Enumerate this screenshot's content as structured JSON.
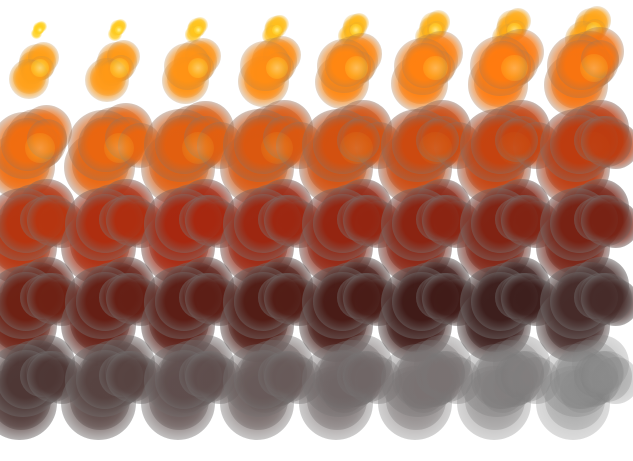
{
  "sprite_sheet": {
    "subject": "explosion",
    "columns": 8,
    "rows": 6,
    "background": "#ffffff",
    "palette": {
      "core": "#fff4a0",
      "flame_yellow": "#ffd020",
      "flame_orange": "#ff7a10",
      "ember_red": "#a82810",
      "char_dark": "#3a1a18",
      "smoke_gray": "#8a8a8a"
    }
  }
}
